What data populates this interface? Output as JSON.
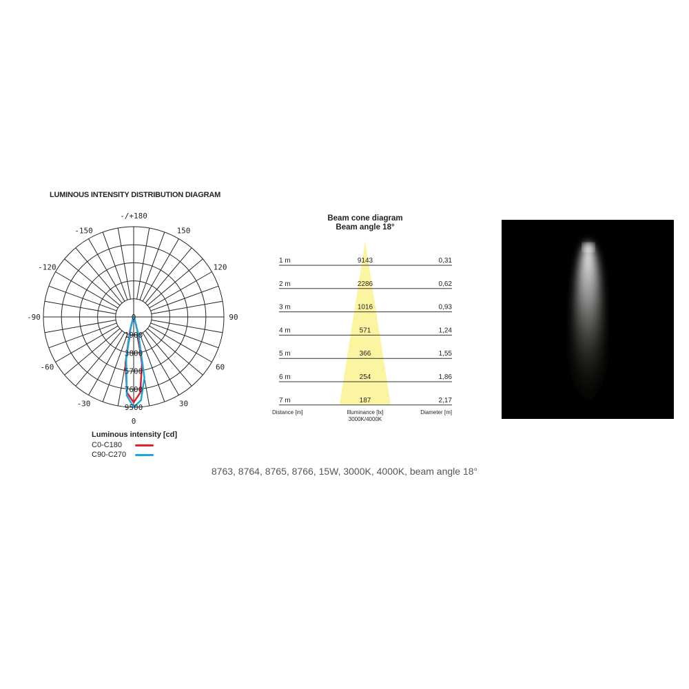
{
  "chart_data": [
    {
      "type": "polar",
      "title": "LUMINOUS INTENSITY DISTRIBUTION DIAGRAM",
      "angle_labels": [
        "-/+180",
        "150",
        "120",
        "90",
        "60",
        "30",
        "0",
        "-30",
        "-60",
        "-90",
        "-120",
        "-150"
      ],
      "radial_ticks": [
        0,
        1900,
        3800,
        5700,
        7600,
        9500
      ],
      "rlim": [
        0,
        9500
      ],
      "legend_title": "Luminous intensity [cd]",
      "series": [
        {
          "name": "C0-C180",
          "color": "#e41e26",
          "angles": [
            -25,
            -20,
            -15,
            -10,
            -5,
            0,
            5,
            10,
            15,
            20,
            25
          ],
          "values": [
            0,
            300,
            1500,
            5000,
            8000,
            9000,
            8000,
            5000,
            1500,
            300,
            0
          ]
        },
        {
          "name": "C90-C270",
          "color": "#1aa6e0",
          "angles": [
            -25,
            -20,
            -15,
            -10,
            -5,
            0,
            5,
            10,
            15,
            20,
            25
          ],
          "values": [
            0,
            250,
            1200,
            4500,
            8300,
            9500,
            8800,
            6500,
            2000,
            400,
            0
          ]
        }
      ]
    },
    {
      "type": "table",
      "title": "Beam cone diagram",
      "subtitle": "Beam angle 18°",
      "columns": [
        "Distance [m]",
        "Illuminance [lx]",
        "Diameter [m]"
      ],
      "column_note": "3000K/4000K",
      "rows": [
        [
          "1 m",
          "9143",
          "0,31"
        ],
        [
          "2 m",
          "2286",
          "0,62"
        ],
        [
          "3 m",
          "1016",
          "0,93"
        ],
        [
          "4 m",
          "571",
          "1,24"
        ],
        [
          "5 m",
          "366",
          "1,55"
        ],
        [
          "6 m",
          "254",
          "1,86"
        ],
        [
          "7 m",
          "187",
          "2,17"
        ]
      ],
      "cone_color": "#fbf4a0"
    }
  ],
  "caption": "8763, 8764, 8765, 8766, 15W, 3000K, 4000K, beam angle 18°"
}
